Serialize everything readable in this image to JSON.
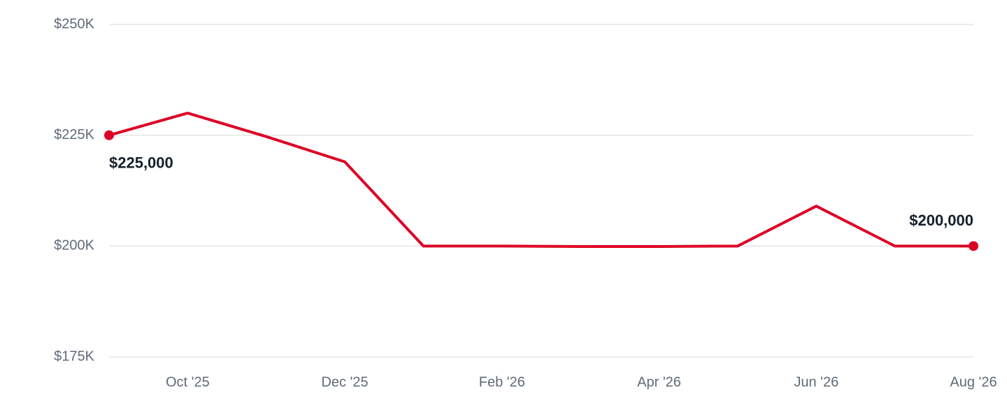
{
  "chart_data": {
    "type": "line",
    "categories": [
      null,
      "Oct '25",
      null,
      "Dec '25",
      null,
      "Feb '26",
      null,
      "Apr '26",
      null,
      "Jun '26",
      null,
      "Aug '26"
    ],
    "series": [
      {
        "color": "#dc0025",
        "values": [
          225000,
          230000,
          224700,
          219000,
          200000,
          200000,
          199900,
          199900,
          200000,
          209000,
          200000,
          200000
        ],
        "value_labels": [
          "$225,000",
          null,
          null,
          null,
          null,
          null,
          null,
          null,
          null,
          null,
          null,
          "$200,000"
        ]
      }
    ],
    "ylim": [
      175000,
      250000
    ],
    "yticks": [
      {
        "value": 175000,
        "label": "$175K"
      },
      {
        "value": 200000,
        "label": "$200K"
      },
      {
        "value": 225000,
        "label": "$225K"
      },
      {
        "value": 250000,
        "label": "$250K"
      }
    ],
    "grid": true
  }
}
